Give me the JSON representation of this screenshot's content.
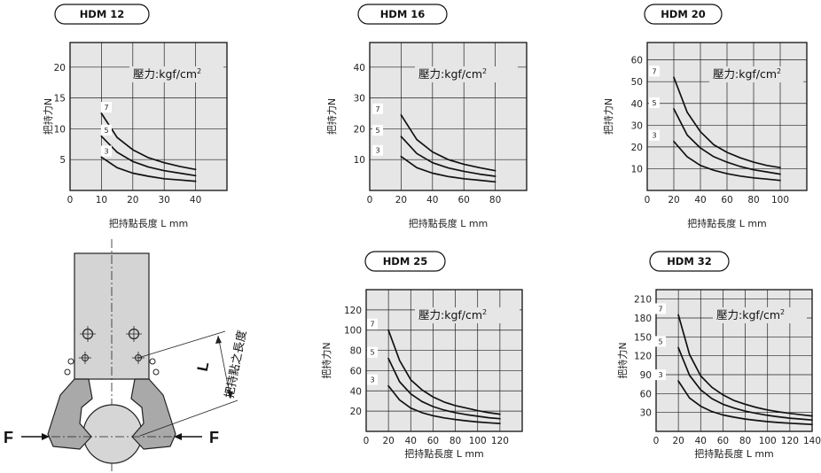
{
  "chart_data": [
    {
      "type": "line",
      "title": "HDM 12",
      "legend_title": "壓力:kgf/cm",
      "legend_sup": "2",
      "xlabel": "把持點長度 L  mm",
      "ylabel": "把持力N",
      "xlim": [
        0,
        50
      ],
      "ylim": [
        0,
        24
      ],
      "xticks": [
        "0",
        "10",
        "20",
        "30",
        "40"
      ],
      "yticks": [
        "5",
        "10",
        "15",
        "20"
      ],
      "grid": true,
      "series": [
        {
          "name": "7",
          "x": [
            10,
            15,
            20,
            25,
            30,
            35,
            40
          ],
          "y": [
            12.5,
            8.6,
            6.6,
            5.3,
            4.5,
            3.9,
            3.4
          ]
        },
        {
          "name": "5",
          "x": [
            10,
            15,
            20,
            25,
            30,
            35,
            40
          ],
          "y": [
            8.8,
            6.2,
            4.7,
            3.8,
            3.2,
            2.8,
            2.4
          ]
        },
        {
          "name": "3",
          "x": [
            10,
            15,
            20,
            25,
            30,
            35,
            40
          ],
          "y": [
            5.4,
            3.7,
            2.8,
            2.3,
            1.9,
            1.7,
            1.5
          ]
        }
      ]
    },
    {
      "type": "line",
      "title": "HDM 16",
      "legend_title": "壓力:kgf/cm",
      "legend_sup": "2",
      "xlabel": "把持點長度 L  mm",
      "ylabel": "把持力N",
      "xlim": [
        0,
        100
      ],
      "ylim": [
        0,
        48
      ],
      "xticks": [
        "0",
        "20",
        "40",
        "60",
        "80"
      ],
      "yticks": [
        "10",
        "20",
        "30",
        "40"
      ],
      "grid": true,
      "series": [
        {
          "name": "7",
          "x": [
            20,
            30,
            40,
            50,
            60,
            70,
            80
          ],
          "y": [
            24.5,
            16.5,
            12.5,
            10,
            8.5,
            7.4,
            6.4
          ]
        },
        {
          "name": "5",
          "x": [
            20,
            30,
            40,
            50,
            60,
            70,
            80
          ],
          "y": [
            17.5,
            12,
            9,
            7.3,
            6.2,
            5.3,
            4.6
          ]
        },
        {
          "name": "3",
          "x": [
            20,
            30,
            40,
            50,
            60,
            70,
            80
          ],
          "y": [
            11,
            7.4,
            5.6,
            4.5,
            3.8,
            3.3,
            2.8
          ]
        }
      ]
    },
    {
      "type": "line",
      "title": "HDM 20",
      "legend_title": "壓力:kgf/cm",
      "legend_sup": "2",
      "xlabel": "把持點長度 L  mm",
      "ylabel": "把持力N",
      "xlim": [
        0,
        120
      ],
      "ylim": [
        0,
        68
      ],
      "xticks": [
        "0",
        "20",
        "40",
        "60",
        "80",
        "100"
      ],
      "yticks": [
        "10",
        "20",
        "30",
        "40",
        "50",
        "60"
      ],
      "grid": true,
      "series": [
        {
          "name": "7",
          "x": [
            20,
            30,
            40,
            50,
            60,
            70,
            80,
            90,
            100
          ],
          "y": [
            52,
            36,
            27,
            21,
            17.5,
            15,
            13,
            11.5,
            10.5
          ]
        },
        {
          "name": "5",
          "x": [
            20,
            30,
            40,
            50,
            60,
            70,
            80,
            90,
            100
          ],
          "y": [
            37.5,
            25.5,
            19.5,
            15.5,
            13,
            11,
            9.5,
            8.5,
            7.5
          ]
        },
        {
          "name": "3",
          "x": [
            20,
            30,
            40,
            50,
            60,
            70,
            80,
            90,
            100
          ],
          "y": [
            22.5,
            15.5,
            11.5,
            9.3,
            7.7,
            6.6,
            5.8,
            5.2,
            4.6
          ]
        }
      ]
    },
    {
      "type": "line",
      "title": "HDM 25",
      "legend_title": "壓力:kgf/cm",
      "legend_sup": "2",
      "xlabel": "把持點長度 L  mm",
      "ylabel": "把持力N",
      "xlim": [
        0,
        140
      ],
      "ylim": [
        0,
        140
      ],
      "xticks": [
        "0",
        "20",
        "40",
        "60",
        "80",
        "100",
        "120"
      ],
      "yticks": [
        "20",
        "40",
        "60",
        "80",
        "100",
        "120"
      ],
      "grid": true,
      "series": [
        {
          "name": "7",
          "x": [
            20,
            30,
            40,
            50,
            60,
            70,
            80,
            90,
            100,
            110,
            120
          ],
          "y": [
            100,
            70,
            51,
            41,
            34,
            29,
            25.5,
            23,
            20.5,
            18.5,
            17
          ]
        },
        {
          "name": "5",
          "x": [
            20,
            30,
            40,
            50,
            60,
            70,
            80,
            90,
            100,
            110,
            120
          ],
          "y": [
            72,
            49,
            37,
            29.5,
            24.5,
            21,
            18.5,
            16.5,
            15,
            13.5,
            12.5
          ]
        },
        {
          "name": "3",
          "x": [
            20,
            30,
            40,
            50,
            60,
            70,
            80,
            90,
            100,
            110,
            120
          ],
          "y": [
            45,
            31,
            23,
            18.5,
            15.5,
            13.3,
            11.7,
            10.4,
            9.3,
            8.5,
            7.8
          ]
        }
      ]
    },
    {
      "type": "line",
      "title": "HDM 32",
      "legend_title": "壓力:kgf/cm",
      "legend_sup": "2",
      "xlabel": "把持點長度 L  mm",
      "ylabel": "把持力N",
      "xlim": [
        0,
        140
      ],
      "ylim": [
        0,
        225
      ],
      "xticks": [
        "0",
        "20",
        "40",
        "60",
        "80",
        "100",
        "120",
        "140"
      ],
      "yticks": [
        "30",
        "60",
        "90",
        "120",
        "150",
        "180",
        "210"
      ],
      "grid": true,
      "series": [
        {
          "name": "7",
          "x": [
            20,
            30,
            40,
            50,
            60,
            70,
            80,
            90,
            100,
            110,
            120,
            130,
            140
          ],
          "y": [
            185,
            122,
            88,
            70,
            58,
            49,
            43,
            38,
            34,
            31,
            28.5,
            26.5,
            24.5
          ]
        },
        {
          "name": "5",
          "x": [
            20,
            30,
            40,
            50,
            60,
            70,
            80,
            90,
            100,
            110,
            120,
            130,
            140
          ],
          "y": [
            133,
            89,
            66,
            52,
            43,
            37,
            32,
            28.5,
            25.5,
            23,
            21,
            19.5,
            18
          ]
        },
        {
          "name": "3",
          "x": [
            20,
            30,
            40,
            50,
            60,
            70,
            80,
            90,
            100,
            110,
            120,
            130,
            140
          ],
          "y": [
            80,
            53,
            40,
            31.5,
            26,
            22.5,
            19.5,
            17.5,
            15.5,
            14,
            13,
            12,
            11
          ]
        }
      ]
    }
  ],
  "diagram": {
    "force_left": "F",
    "force_right": "F",
    "length_symbol": "L",
    "length_caption": "把持點之長度"
  }
}
